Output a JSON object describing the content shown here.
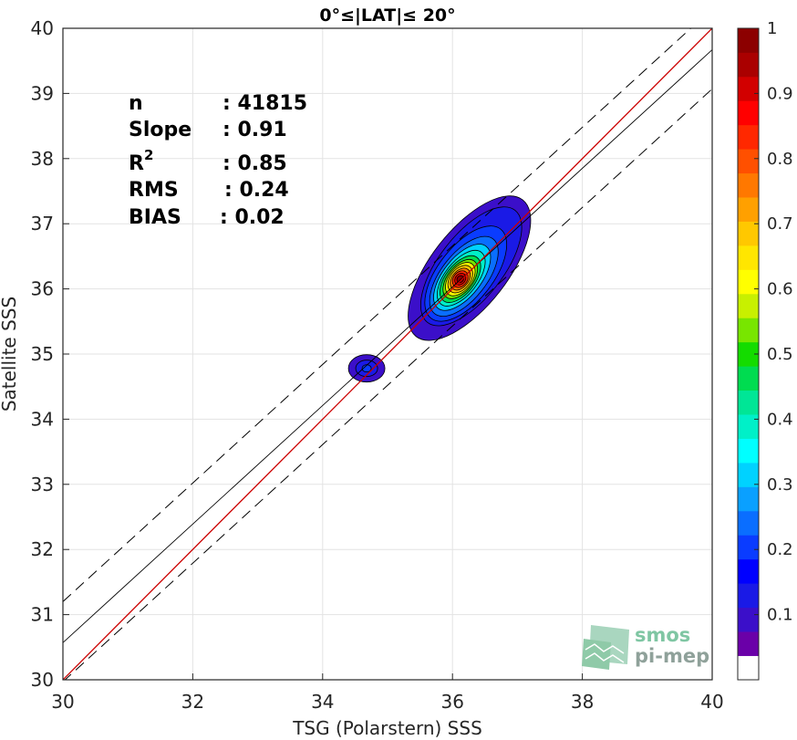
{
  "chart_data": {
    "type": "heatmap",
    "title": "0°≤|LAT|≤ 20°",
    "xlabel": "TSG (Polarstern) SSS",
    "ylabel": "Satellite SSS",
    "xlim": [
      30,
      40
    ],
    "ylim": [
      30,
      40
    ],
    "xticks": [
      "30",
      "32",
      "34",
      "36",
      "38",
      "40"
    ],
    "yticks": [
      "30",
      "31",
      "32",
      "33",
      "34",
      "35",
      "36",
      "37",
      "38",
      "39",
      "40"
    ],
    "grid": true,
    "stats": [
      {
        "label": "n",
        "value": ": 41815"
      },
      {
        "label": "Slope",
        "value": ": 0.91"
      },
      {
        "label": "R",
        "sup": "2",
        "value": ": 0.85"
      },
      {
        "label": "RMS",
        "value": ": 0.24"
      },
      {
        "label": "BIAS",
        "value": ": 0.02"
      }
    ],
    "lines": {
      "identity": {
        "slope": 1,
        "intercept": 0,
        "color": "#cc0000"
      },
      "fit": {
        "slope": 0.91,
        "intercept": 3.27,
        "color": "#000000"
      },
      "upper_bound": {
        "slope": 0.91,
        "intercept": 3.9,
        "style": "dashed"
      },
      "lower_bound": {
        "slope": 0.91,
        "intercept": 2.67,
        "style": "dashed"
      }
    },
    "density_clusters": [
      {
        "name": "main",
        "x": 36.12,
        "y": 36.15,
        "peak": 1.0
      },
      {
        "name": "secondary",
        "x": 34.65,
        "y": 34.78,
        "peak": 0.14
      }
    ],
    "colorbar": {
      "range": [
        0,
        1
      ],
      "ticks": [
        "0.1",
        "0.2",
        "0.3",
        "0.4",
        "0.5",
        "0.6",
        "0.7",
        "0.8",
        "0.9",
        "1"
      ],
      "colors": [
        "#ffffff",
        "#6a00a8",
        "#3b0fc9",
        "#1a1ae6",
        "#0000ff",
        "#0a3cff",
        "#0a6eff",
        "#0aa0ff",
        "#00d2ff",
        "#00ffff",
        "#00f0c8",
        "#00e696",
        "#00dc50",
        "#14dc00",
        "#78e600",
        "#c8f000",
        "#ffff00",
        "#ffe600",
        "#ffc800",
        "#ffa000",
        "#ff7800",
        "#ff5000",
        "#ff2800",
        "#ff0000",
        "#d20000",
        "#aa0000",
        "#8c0000"
      ]
    },
    "logo": {
      "line1": "smos",
      "line2": "pi-mep"
    }
  }
}
